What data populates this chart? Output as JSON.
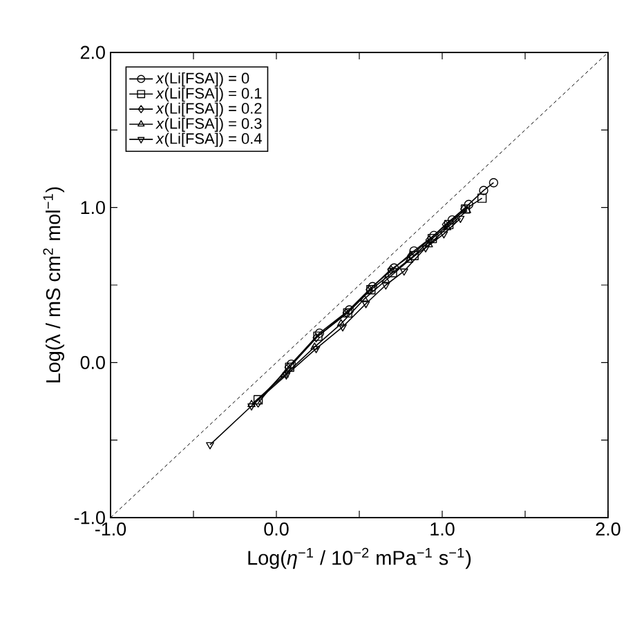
{
  "chart_data": {
    "type": "line",
    "xlabel": "Log(*η*$^{−1}$ / 10$^{−2}$ mPa$^{−1}$ s$^{−1}$)",
    "ylabel": "Log(λ / mS cm$^{2}$ mol$^{−1}$)",
    "xlim": [
      -1.0,
      2.0
    ],
    "ylim": [
      -1.0,
      2.0
    ],
    "xticks": [
      {
        "value": -1.0,
        "label": "-1.0"
      },
      {
        "value": -0.5,
        "label": null
      },
      {
        "value": 0.0,
        "label": "0.0"
      },
      {
        "value": 0.5,
        "label": null
      },
      {
        "value": 1.0,
        "label": "1.0"
      },
      {
        "value": 1.5,
        "label": null
      },
      {
        "value": 2.0,
        "label": "2.0"
      }
    ],
    "yticks": [
      {
        "value": -1.0,
        "label": "-1.0"
      },
      {
        "value": -0.5,
        "label": null
      },
      {
        "value": 0.0,
        "label": "0.0"
      },
      {
        "value": 0.5,
        "label": null
      },
      {
        "value": 1.0,
        "label": "1.0"
      },
      {
        "value": 1.5,
        "label": null
      },
      {
        "value": 2.0,
        "label": "2.0"
      }
    ],
    "legend": "top left",
    "grid": false,
    "series": [
      {
        "name": "*x*(Li[FSA]) = 0",
        "color": "#000000",
        "marker": "circle",
        "x": [
          0.09,
          0.26,
          0.44,
          0.58,
          0.71,
          0.83,
          0.95,
          1.06,
          1.16,
          1.25,
          1.31
        ],
        "values": [
          -0.01,
          0.19,
          0.34,
          0.49,
          0.61,
          0.72,
          0.82,
          0.92,
          1.02,
          1.11,
          1.16
        ]
      },
      {
        "name": "*x*(Li[FSA]) = 0.1",
        "color": "#000000",
        "marker": "square",
        "x": [
          -0.11,
          0.08,
          0.25,
          0.43,
          0.57,
          0.7,
          0.83,
          0.94,
          1.04,
          1.14,
          1.24
        ],
        "values": [
          -0.24,
          -0.03,
          0.17,
          0.32,
          0.47,
          0.58,
          0.69,
          0.8,
          0.89,
          0.99,
          1.06
        ]
      },
      {
        "name": "*x*(Li[FSA]) = 0.2",
        "color": "#000000",
        "marker": "diamond",
        "x": [
          -0.11,
          0.07,
          0.24,
          0.42,
          0.56,
          0.69,
          0.81,
          0.92,
          1.02,
          1.13
        ],
        "values": [
          -0.26,
          -0.03,
          0.16,
          0.32,
          0.47,
          0.6,
          0.69,
          0.79,
          0.89,
          0.99
        ]
      },
      {
        "name": "*x*(Li[FSA]) = 0.3",
        "color": "#000000",
        "marker": "triangle",
        "x": [
          -0.15,
          0.05,
          0.23,
          0.39,
          0.53,
          0.66,
          0.8,
          0.92,
          1.03,
          1.15
        ],
        "values": [
          -0.27,
          -0.08,
          0.1,
          0.25,
          0.41,
          0.53,
          0.66,
          0.76,
          0.87,
          0.98
        ]
      },
      {
        "name": "*x*(Li[FSA]) = 0.4",
        "color": "#000000",
        "marker": "triangle_down",
        "x": [
          -0.4,
          -0.15,
          0.06,
          0.24,
          0.4,
          0.54,
          0.66,
          0.77,
          0.9,
          1.01,
          1.11
        ],
        "values": [
          -0.53,
          -0.28,
          -0.08,
          0.09,
          0.23,
          0.38,
          0.5,
          0.59,
          0.74,
          0.83,
          0.93
        ]
      },
      {
        "color": "#000000",
        "marker": "none",
        "line_style": "dashed",
        "x": [
          -1.0,
          2.0
        ],
        "values": [
          -1.0,
          2.0
        ]
      }
    ]
  }
}
